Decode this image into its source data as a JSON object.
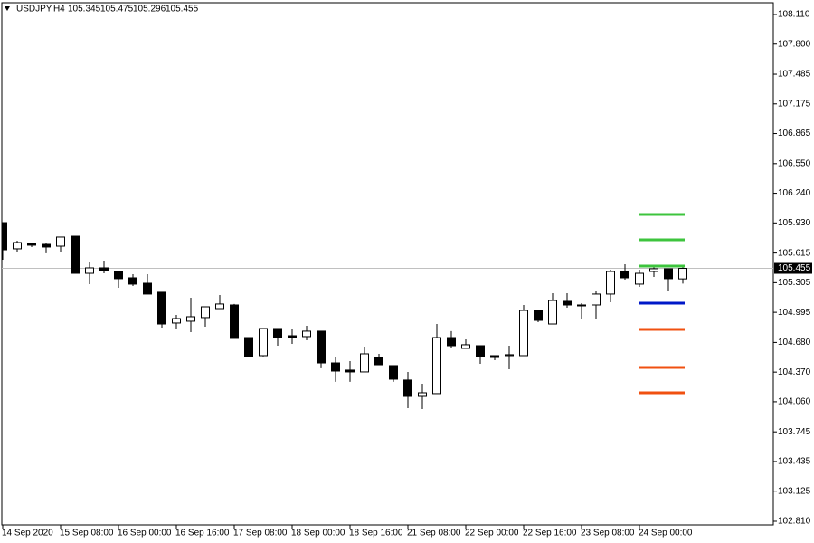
{
  "chart_data": {
    "type": "candlestick",
    "symbol": "USDJPY,H4",
    "last_bar": {
      "open": 105.345,
      "high": 105.475,
      "low": 105.296,
      "close": 105.455
    },
    "categories": [
      "14 Sep 2020",
      null,
      null,
      null,
      "15 Sep 08:00",
      null,
      null,
      null,
      "16 Sep 00:00",
      null,
      null,
      null,
      "16 Sep 16:00",
      null,
      null,
      null,
      "17 Sep 08:00",
      null,
      null,
      null,
      "18 Sep 00:00",
      null,
      null,
      null,
      "18 Sep 16:00",
      null,
      null,
      null,
      "21 Sep 08:00",
      null,
      null,
      null,
      "22 Sep 00:00",
      null,
      null,
      null,
      "22 Sep 16:00",
      null,
      null,
      null,
      "23 Sep 08:00",
      null,
      null,
      null,
      "24 Sep 00:00",
      null,
      null,
      null
    ],
    "open": [
      105.933,
      105.659,
      105.716,
      105.706,
      105.687,
      105.791,
      105.403,
      105.46,
      105.422,
      105.356,
      105.299,
      105.205,
      104.883,
      104.902,
      104.94,
      105.034,
      105.072,
      104.731,
      104.542,
      104.826,
      104.75,
      104.741,
      104.798,
      104.466,
      104.391,
      104.372,
      104.523,
      104.438,
      104.287,
      104.116,
      104.145,
      104.731,
      104.618,
      104.646,
      104.542,
      104.542,
      104.542,
      105.015,
      104.873,
      105.11,
      105.072,
      105.072,
      105.186,
      105.422,
      105.29,
      105.422,
      105.451,
      105.345
    ],
    "high": [
      105.933,
      105.744,
      105.725,
      105.716,
      105.782,
      105.791,
      105.517,
      105.536,
      105.432,
      105.394,
      105.394,
      105.205,
      104.968,
      105.148,
      105.053,
      105.176,
      105.082,
      104.731,
      104.826,
      104.826,
      104.826,
      104.854,
      104.798,
      104.523,
      104.485,
      104.637,
      104.561,
      104.438,
      104.372,
      104.249,
      104.873,
      104.798,
      104.712,
      104.646,
      104.542,
      104.646,
      105.072,
      105.015,
      105.195,
      105.195,
      105.091,
      105.223,
      105.441,
      105.498,
      105.441,
      105.479,
      105.451,
      105.475
    ],
    "low": [
      105.545,
      105.63,
      105.678,
      105.612,
      105.621,
      105.403,
      105.29,
      105.403,
      105.252,
      105.271,
      105.186,
      104.835,
      104.817,
      104.788,
      104.845,
      105.034,
      104.722,
      104.533,
      104.533,
      104.646,
      104.665,
      104.703,
      104.41,
      104.268,
      104.268,
      104.372,
      104.447,
      104.268,
      103.993,
      103.984,
      104.145,
      104.618,
      104.618,
      104.457,
      104.495,
      104.4,
      104.542,
      104.892,
      104.873,
      105.044,
      104.93,
      104.921,
      105.1,
      105.337,
      105.261,
      105.365,
      105.214,
      105.296
    ],
    "close": [
      105.649,
      105.725,
      105.697,
      105.678,
      105.782,
      105.403,
      105.46,
      105.432,
      105.347,
      105.29,
      105.186,
      104.873,
      104.93,
      104.949,
      105.053,
      105.082,
      104.722,
      104.533,
      104.826,
      104.731,
      104.731,
      104.798,
      104.466,
      104.381,
      104.372,
      104.561,
      104.447,
      104.296,
      104.116,
      104.154,
      104.731,
      104.646,
      104.656,
      104.533,
      104.523,
      104.552,
      105.015,
      104.911,
      105.119,
      105.072,
      105.063,
      105.186,
      105.422,
      105.356,
      105.403,
      105.451,
      105.347,
      105.455
    ],
    "current_price": 105.455,
    "levels": [
      {
        "value": 106.018,
        "color": "#3ec43e"
      },
      {
        "value": 105.753,
        "color": "#3ec43e"
      },
      {
        "value": 105.479,
        "color": "#3ec43e"
      },
      {
        "value": 105.091,
        "color": "#0018c8"
      },
      {
        "value": 104.816,
        "color": "#f05010"
      },
      {
        "value": 104.419,
        "color": "#f05010"
      },
      {
        "value": 104.154,
        "color": "#f05010"
      }
    ],
    "ylim": [
      102.772,
      108.233
    ],
    "yticks": [
      {
        "value": 108.11,
        "label": "108.110"
      },
      {
        "value": 107.8,
        "label": "107.800"
      },
      107.485,
      107.175,
      106.865,
      {
        "value": 106.55,
        "label": "106.550"
      },
      {
        "value": 106.24,
        "label": "106.240"
      },
      {
        "value": 105.93,
        "label": "105.930"
      },
      105.615,
      105.305,
      104.995,
      {
        "value": 104.68,
        "label": "104.680"
      },
      {
        "value": 104.37,
        "label": "104.370"
      },
      {
        "value": 104.06,
        "label": "104.060"
      },
      103.745,
      103.435,
      103.125,
      {
        "value": 102.81,
        "label": "102.810"
      }
    ]
  }
}
